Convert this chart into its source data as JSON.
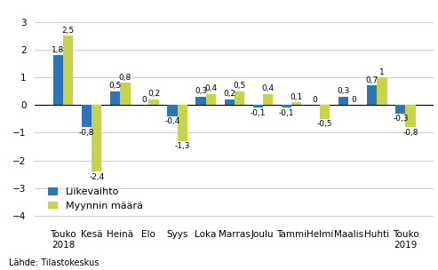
{
  "categories": [
    "Touko\n2018",
    "Kesä",
    "Heinä",
    "Elo",
    "Syys",
    "Loka",
    "Marras",
    "Joulu",
    "Tammi",
    "Helmi",
    "Maalis",
    "Huhti",
    "Touko\n2019"
  ],
  "liikevaihto": [
    1.8,
    -0.8,
    0.5,
    0.0,
    -0.4,
    0.3,
    0.2,
    -0.1,
    -0.1,
    0.0,
    0.3,
    0.7,
    -0.3
  ],
  "myynnin_maara": [
    2.5,
    -2.4,
    0.8,
    0.2,
    -1.3,
    0.4,
    0.5,
    0.4,
    0.1,
    -0.5,
    0.0,
    1.0,
    -0.8
  ],
  "bar_color_liike": "#2E75B6",
  "bar_color_myynti": "#C5D44A",
  "ylim": [
    -4.2,
    3.5
  ],
  "yticks": [
    -4,
    -3,
    -2,
    -1,
    0,
    1,
    2,
    3
  ],
  "legend_labels": [
    "Liikevaihto",
    "Myynnin määrä"
  ],
  "source_text": "Lähde: Tilastokeskus",
  "bar_width": 0.35,
  "label_fontsize": 6.5,
  "tick_fontsize": 7.5,
  "legend_fontsize": 8
}
